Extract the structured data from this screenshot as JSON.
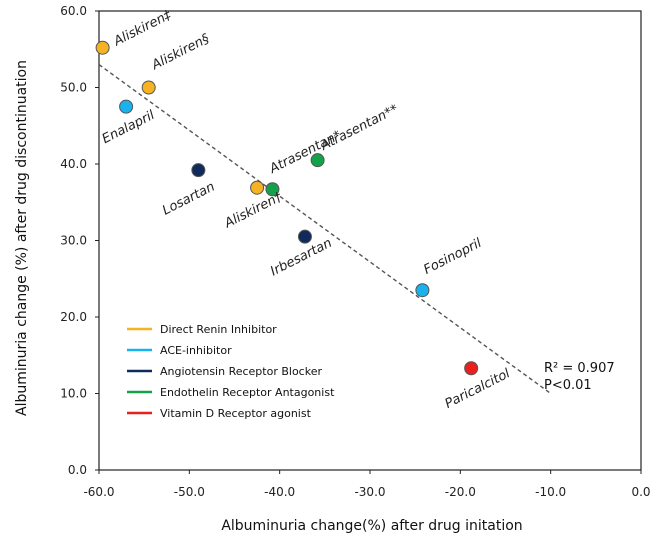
{
  "chart_data": {
    "type": "scatter",
    "xlabel": "Albuminuria change(%) after drug initation",
    "ylabel": "Albuminuria change (%) after drug discontinuation",
    "xlim": [
      -60,
      0
    ],
    "ylim": [
      0,
      60
    ],
    "x_ticks": [
      "-60.0",
      "-50.0",
      "-40.0",
      "-30.0",
      "-20.0",
      "-10.0",
      "0.0"
    ],
    "y_ticks": [
      "0.0",
      "10.0",
      "20.0",
      "30.0",
      "40.0",
      "50.0",
      "60.0"
    ],
    "grid": false,
    "legend_position": "bottom-left",
    "series": [
      {
        "name": "Direct Renin Inhibitor",
        "color": "#F5B324"
      },
      {
        "name": "ACE-inhibitor",
        "color": "#19B2EC"
      },
      {
        "name": "Angiotensin Receptor Blocker",
        "color": "#102A5C"
      },
      {
        "name": "Endothelin Receptor Antagonist",
        "color": "#13A24A"
      },
      {
        "name": "Vitamin D Receptor agonist",
        "color": "#E8211F"
      }
    ],
    "points": [
      {
        "label": "Aliskiren‡",
        "x": -59.6,
        "y": 55.2,
        "series": "Direct Renin Inhibitor"
      },
      {
        "label": "Aliskiren§",
        "x": -54.5,
        "y": 50.0,
        "series": "Direct Renin Inhibitor"
      },
      {
        "label": "Enalapril",
        "x": -57.0,
        "y": 47.5,
        "series": "ACE-inhibitor"
      },
      {
        "label": "Losartan",
        "x": -49.0,
        "y": 39.2,
        "series": "Angiotensin Receptor Blocker"
      },
      {
        "label": "Aliskiren†",
        "x": -42.5,
        "y": 36.9,
        "series": "Direct Renin Inhibitor"
      },
      {
        "label": "Atrasentan*",
        "x": -40.8,
        "y": 36.7,
        "series": "Endothelin Receptor Antagonist"
      },
      {
        "label": "Atrasentan**",
        "x": -35.8,
        "y": 40.5,
        "series": "Endothelin Receptor Antagonist"
      },
      {
        "label": "Irbesartan",
        "x": -37.2,
        "y": 30.5,
        "series": "Angiotensin Receptor Blocker"
      },
      {
        "label": "Fosinopril",
        "x": -24.2,
        "y": 23.5,
        "series": "ACE-inhibitor"
      },
      {
        "label": "Paricalcitol",
        "x": -18.8,
        "y": 13.3,
        "series": "Vitamin D Receptor agonist"
      }
    ],
    "trendline": {
      "x": [
        -60,
        -10
      ],
      "y": [
        53.0,
        10.0
      ]
    },
    "annotations": [
      "R² = 0.907",
      "P<0.01"
    ]
  }
}
